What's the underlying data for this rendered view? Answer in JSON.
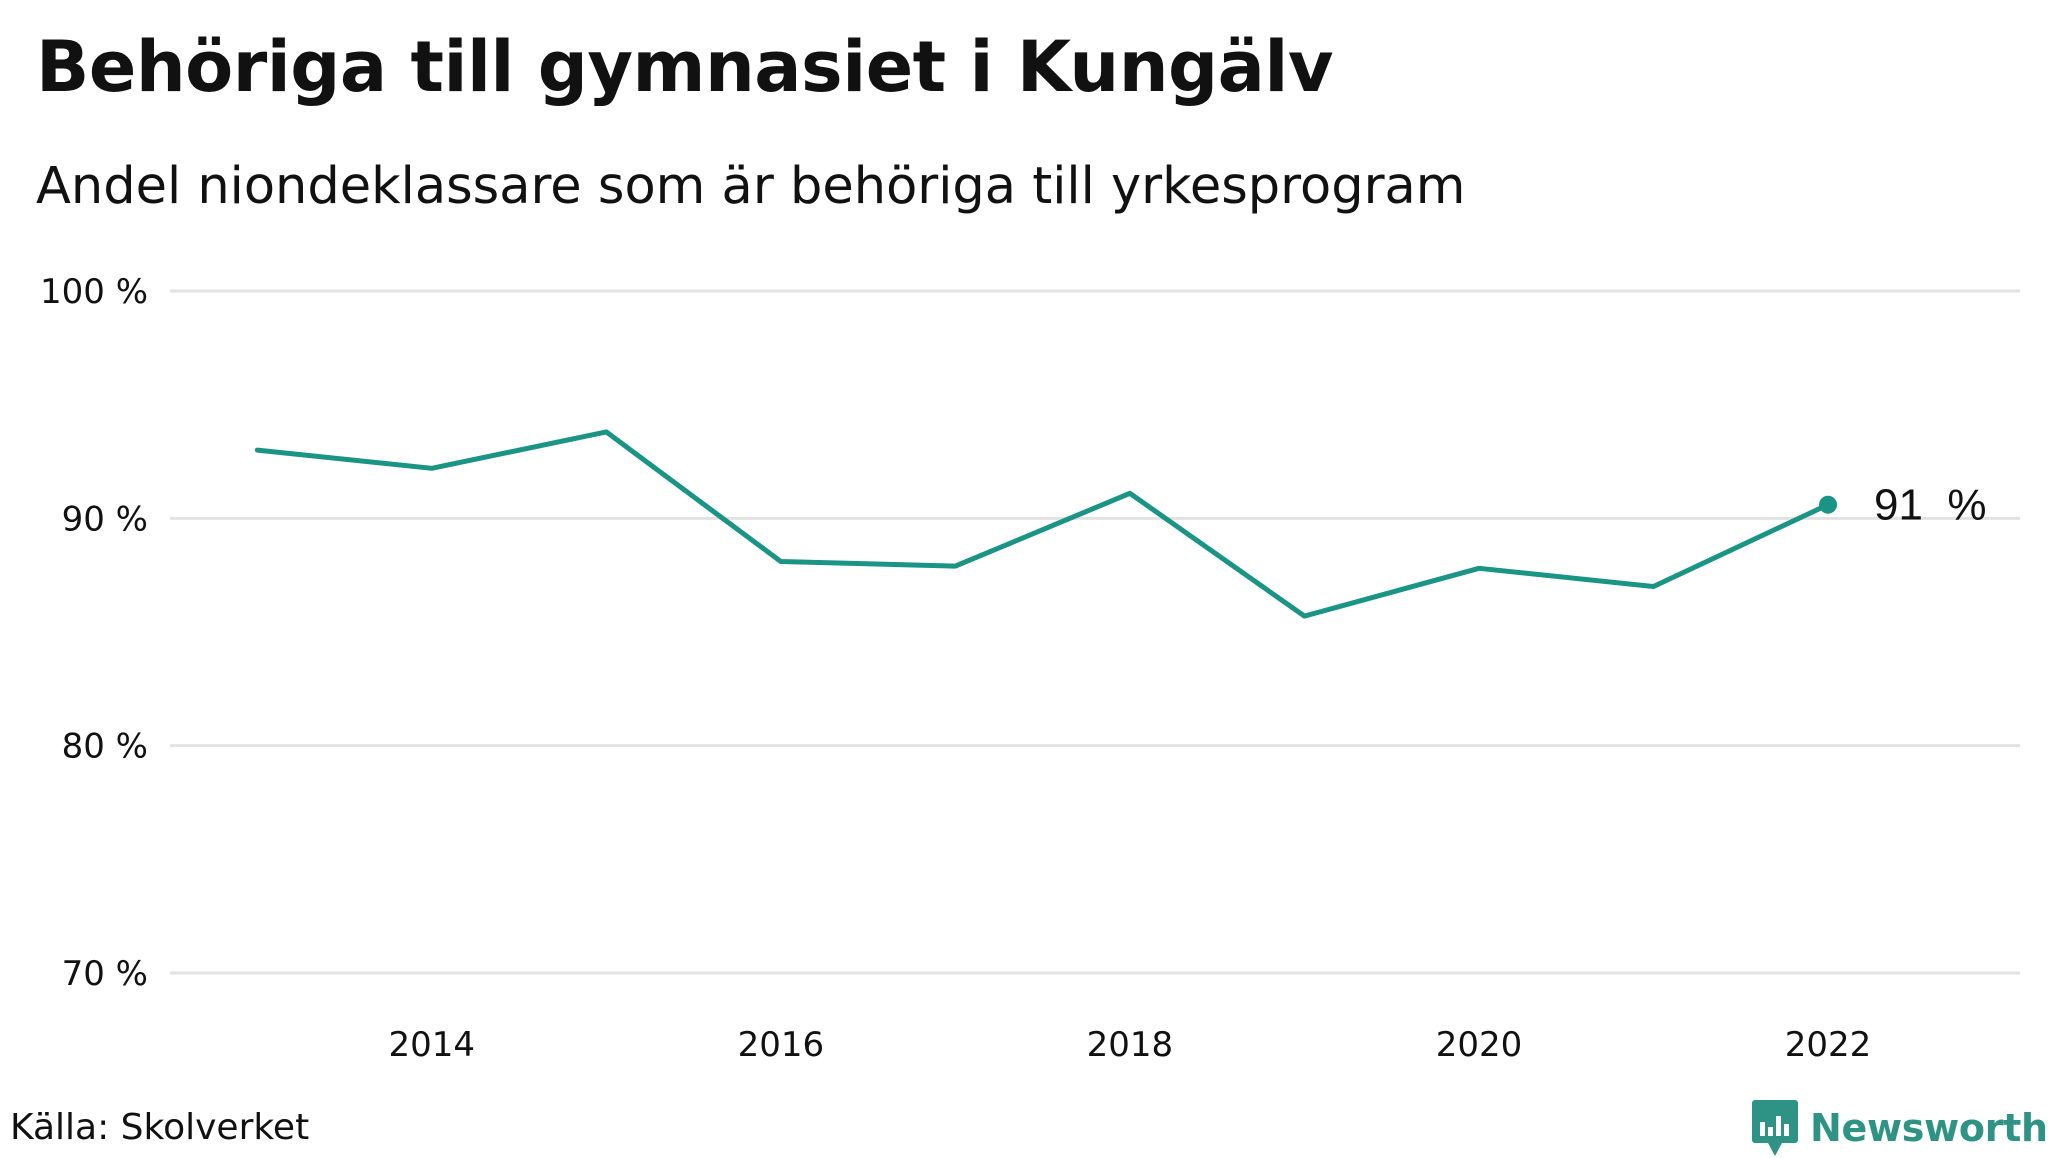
{
  "header": {
    "title": "Behöriga till gymnasiet i Kungälv",
    "subtitle": "Andel niondeklassare som är behöriga till yrkesprogram"
  },
  "footer": {
    "source": "Källa: Skolverket",
    "brand": "Newsworthy",
    "brand_icon": "newsworthy-logo-icon"
  },
  "chart_data": {
    "type": "line",
    "title": "Behöriga till gymnasiet i Kungälv",
    "subtitle": "Andel niondeklassare som är behöriga till yrkesprogram",
    "x": [
      2013,
      2014,
      2015,
      2016,
      2017,
      2018,
      2019,
      2020,
      2021,
      2022
    ],
    "series": [
      {
        "values": [
          93.0,
          92.2,
          93.8,
          88.1,
          87.9,
          91.1,
          85.7,
          87.8,
          87.0,
          90.6
        ],
        "color": "#1a9484"
      }
    ],
    "xlim": [
      2012.5,
      2023.1
    ],
    "ylim": [
      70,
      100
    ],
    "x_ticks": [
      {
        "value": 2014,
        "label": "2014"
      },
      {
        "value": 2016,
        "label": "2016"
      },
      {
        "value": 2018,
        "label": "2018"
      },
      {
        "value": 2020,
        "label": "2020"
      },
      {
        "value": 2022,
        "label": "2022"
      }
    ],
    "y_ticks": [
      {
        "value": 70,
        "label": "70 %"
      },
      {
        "value": 80,
        "label": "80 %"
      },
      {
        "value": 90,
        "label": "90 %"
      },
      {
        "value": 100,
        "label": "100 %"
      }
    ],
    "end_label": "91  %",
    "grid": "horizontal",
    "xlabel": "",
    "ylabel": ""
  }
}
